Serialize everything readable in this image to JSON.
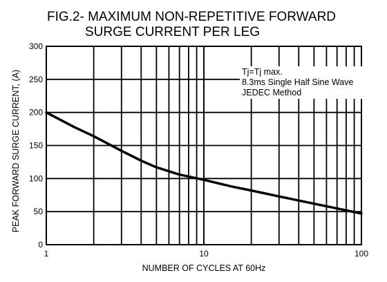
{
  "chart_data": {
    "type": "line",
    "title_line1": "FIG.2- MAXIMUM NON-REPETITIVE FORWARD",
    "title_line2": "SURGE CURRENT PER LEG",
    "xlabel": "NUMBER OF CYCLES AT 60Hz",
    "ylabel": "PEAK FORWARD SURGE CURRENT, (A)",
    "x_scale": "log",
    "xlim": [
      1,
      100
    ],
    "ylim": [
      0,
      300
    ],
    "x_ticks": [
      "1",
      "10",
      "100"
    ],
    "y_ticks": [
      "0",
      "50",
      "100",
      "150",
      "200",
      "250",
      "300"
    ],
    "grid": true,
    "series": [
      {
        "x": [
          1,
          1.5,
          2,
          3,
          4,
          5,
          7,
          10,
          15,
          20,
          30,
          50,
          80,
          100
        ],
        "y": [
          200,
          178,
          164,
          142,
          127,
          117,
          106,
          98,
          88,
          82,
          73,
          62,
          52,
          47
        ]
      }
    ],
    "annotation": [
      "Tj=Tj max.",
      "8.3ms Single Half Sine Wave",
      "JEDEC Method"
    ]
  }
}
